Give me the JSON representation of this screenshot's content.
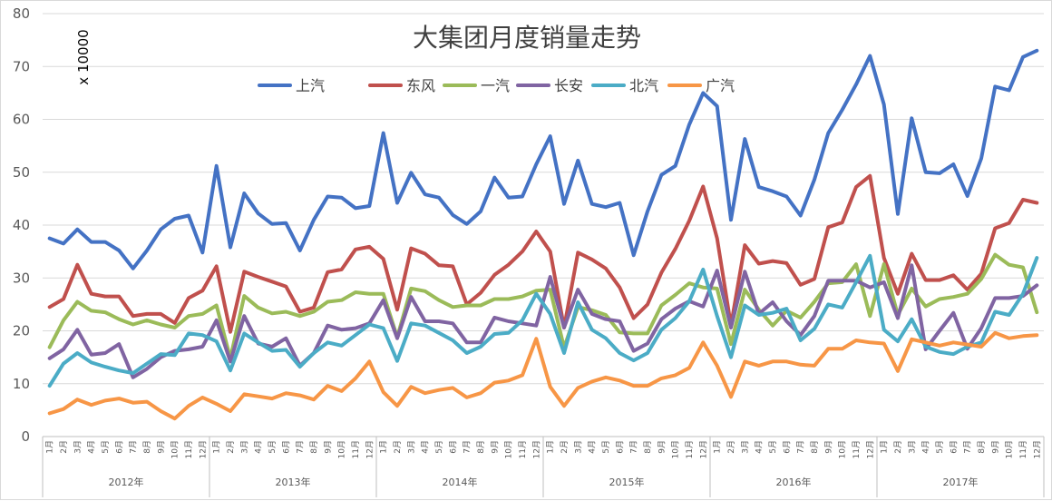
{
  "chart_data": {
    "type": "line",
    "title": "大集团月度销量走势",
    "unit_label": "x 10000",
    "ylim": [
      0,
      80
    ],
    "yticks": [
      0,
      10,
      20,
      30,
      40,
      50,
      60,
      70,
      80
    ],
    "grid": true,
    "legend_position": "top",
    "months": [
      "1月",
      "2月",
      "3月",
      "4月",
      "5月",
      "6月",
      "7月",
      "8月",
      "9月",
      "10月",
      "11月",
      "12月"
    ],
    "years": [
      "2012年",
      "2013年",
      "2014年",
      "2015年",
      "2016年",
      "2017年"
    ],
    "series": [
      {
        "name": "上汽",
        "color": "#4472c4",
        "values": [
          37.5,
          36.5,
          39.2,
          36.8,
          36.8,
          35.2,
          31.8,
          35.2,
          39.2,
          41.2,
          41.8,
          34.8,
          51.2,
          35.8,
          46.0,
          42.2,
          40.2,
          40.4,
          35.2,
          41.0,
          45.4,
          45.2,
          43.2,
          43.6,
          57.4,
          44.2,
          49.9,
          45.8,
          45.2,
          41.9,
          40.2,
          42.6,
          49.0,
          45.2,
          45.4,
          51.5,
          56.8,
          44.0,
          52.2,
          44.0,
          43.4,
          44.2,
          34.3,
          42.6,
          49.5,
          51.2,
          59.0,
          65.0,
          62.5,
          41.0,
          56.3,
          47.2,
          46.4,
          45.4,
          41.8,
          48.6,
          57.4,
          61.8,
          66.6,
          72.0,
          62.8,
          42.1,
          60.2,
          50.0,
          49.8,
          51.5,
          45.5,
          52.6,
          66.2,
          65.5,
          71.8,
          73.0
        ]
      },
      {
        "name": "东风",
        "color": "#c0504d",
        "values": [
          24.5,
          26.0,
          32.5,
          27.0,
          26.5,
          26.5,
          22.8,
          23.2,
          23.2,
          21.5,
          26.2,
          27.6,
          32.2,
          19.8,
          31.2,
          30.2,
          29.3,
          28.4,
          23.6,
          24.4,
          31.1,
          31.6,
          35.4,
          35.9,
          33.6,
          24.0,
          35.6,
          34.6,
          32.4,
          32.2,
          25.0,
          27.2,
          30.6,
          32.5,
          35.0,
          38.8,
          35.0,
          20.6,
          34.8,
          33.5,
          31.8,
          28.2,
          22.4,
          25.0,
          31.0,
          35.5,
          40.8,
          47.3,
          37.5,
          21.0,
          36.2,
          32.7,
          33.2,
          32.8,
          28.7,
          29.8,
          39.6,
          40.5,
          47.2,
          49.3,
          33.8,
          27.0,
          34.6,
          29.6,
          29.6,
          30.5,
          27.8,
          30.8,
          39.4,
          40.4,
          44.8,
          44.2
        ]
      },
      {
        "name": "一汽",
        "color": "#9bbb59",
        "values": [
          16.9,
          22.0,
          25.5,
          23.8,
          23.5,
          22.2,
          21.2,
          22.0,
          21.2,
          20.6,
          22.8,
          23.2,
          24.8,
          14.8,
          26.6,
          24.4,
          23.3,
          23.6,
          22.8,
          23.6,
          25.5,
          25.8,
          27.3,
          27.0,
          27.0,
          18.8,
          28.0,
          27.5,
          25.8,
          24.5,
          24.8,
          24.8,
          26.0,
          26.0,
          26.5,
          27.6,
          27.8,
          16.8,
          24.5,
          23.9,
          23.0,
          19.7,
          19.5,
          19.5,
          24.8,
          26.8,
          29.0,
          28.2,
          28.0,
          17.5,
          27.8,
          24.0,
          21.0,
          23.8,
          22.5,
          25.5,
          29.0,
          29.2,
          32.6,
          22.8,
          32.6,
          23.0,
          28.0,
          24.6,
          26.0,
          26.4,
          27.0,
          29.8,
          34.4,
          32.5,
          32.0,
          23.5
        ]
      },
      {
        "name": "长安",
        "color": "#8064a2",
        "values": [
          14.8,
          16.5,
          20.2,
          15.5,
          15.8,
          17.5,
          11.2,
          12.8,
          15.0,
          16.2,
          16.5,
          17.0,
          22.0,
          14.2,
          22.8,
          17.6,
          17.0,
          18.6,
          13.4,
          15.8,
          21.0,
          20.2,
          20.5,
          21.4,
          25.8,
          18.6,
          26.4,
          21.8,
          21.8,
          21.4,
          17.8,
          17.8,
          22.5,
          21.8,
          21.4,
          21.0,
          30.2,
          20.6,
          27.8,
          23.2,
          22.2,
          21.8,
          16.2,
          17.6,
          22.2,
          24.2,
          25.6,
          24.6,
          31.4,
          20.6,
          31.2,
          23.2,
          25.4,
          21.8,
          19.2,
          22.8,
          29.5,
          29.5,
          29.5,
          28.2,
          29.2,
          22.4,
          32.4,
          16.5,
          20.0,
          23.4,
          16.6,
          20.5,
          26.2,
          26.2,
          26.6,
          28.6
        ]
      },
      {
        "name": "北汽",
        "color": "#4bacc6",
        "values": [
          9.6,
          13.8,
          15.8,
          14.0,
          13.2,
          12.5,
          12.0,
          13.8,
          15.6,
          15.4,
          19.5,
          19.2,
          18.0,
          12.5,
          19.5,
          17.8,
          16.2,
          16.4,
          13.2,
          15.8,
          17.8,
          17.2,
          19.2,
          21.2,
          20.5,
          14.3,
          21.4,
          21.0,
          19.6,
          18.2,
          15.8,
          17.0,
          19.4,
          19.6,
          22.0,
          27.0,
          23.2,
          15.8,
          25.4,
          20.2,
          18.6,
          15.8,
          14.4,
          15.8,
          20.2,
          22.4,
          25.6,
          31.6,
          22.8,
          15.0,
          24.8,
          23.0,
          23.4,
          24.2,
          18.2,
          20.4,
          25.0,
          24.4,
          29.2,
          34.2,
          20.2,
          18.0,
          22.2,
          17.0,
          16.0,
          15.6,
          17.0,
          17.8,
          23.6,
          23.0,
          27.0,
          33.8
        ]
      },
      {
        "name": "广汽",
        "color": "#f79646",
        "values": [
          4.4,
          5.2,
          7.0,
          6.0,
          6.8,
          7.2,
          6.4,
          6.6,
          4.8,
          3.4,
          5.8,
          7.4,
          6.2,
          4.8,
          8.0,
          7.6,
          7.2,
          8.2,
          7.8,
          7.0,
          9.6,
          8.6,
          11.0,
          14.2,
          8.4,
          5.8,
          9.4,
          8.2,
          8.8,
          9.2,
          7.4,
          8.2,
          10.2,
          10.6,
          11.6,
          18.5,
          9.4,
          5.8,
          9.2,
          10.4,
          11.2,
          10.6,
          9.6,
          9.6,
          11.0,
          11.6,
          13.0,
          17.8,
          13.4,
          7.5,
          14.2,
          13.4,
          14.2,
          14.2,
          13.6,
          13.4,
          16.6,
          16.6,
          18.2,
          17.8,
          17.6,
          12.4,
          18.4,
          17.8,
          17.2,
          17.8,
          17.4,
          17.0,
          19.6,
          18.6,
          19.0,
          19.2
        ]
      }
    ]
  }
}
